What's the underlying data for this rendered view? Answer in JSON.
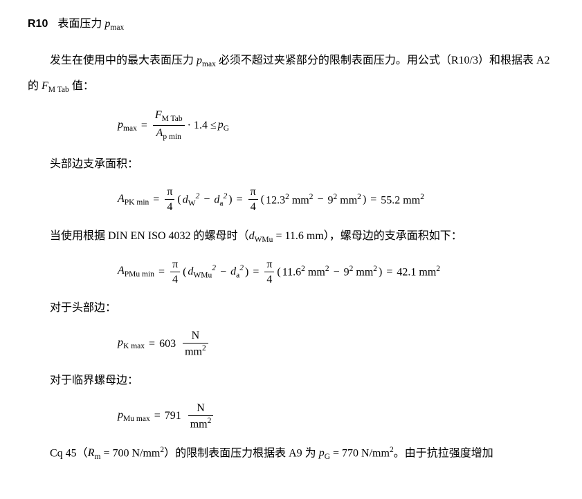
{
  "heading": {
    "tag": "R10",
    "title_pre": "表面压力 ",
    "title_sym": "p",
    "title_sub": "max"
  },
  "p1": {
    "t1": "发生在使用中的最大表面压力 ",
    "sym1": "p",
    "sub1": "max",
    "t2": " 必须不超过夹紧部分的限制表面压力。用公式（R10/3）和根据表 A2 的 ",
    "sym2": "F",
    "sub2": "M Tab",
    "t3": " 值："
  },
  "eq1": {
    "lhs_sym": "p",
    "lhs_sub": "max",
    "num_sym": "F",
    "num_sub": "M Tab",
    "den_sym": "A",
    "den_sub": "p min",
    "factor": " · 1.4 ≤ ",
    "rhs_sym": "p",
    "rhs_sub": "G"
  },
  "sh1": "头部边支承面积：",
  "eq2": {
    "lhs_sym": "A",
    "lhs_sub": "PK min",
    "pi_over_4_num": "π",
    "pi_over_4_den": "4",
    "d1_sym": "d",
    "d1_sub": "W",
    "d1_sup": "2",
    "d2_sym": "d",
    "d2_sub": "a",
    "d2_sup": "2",
    "val1": "12.3",
    "sq": "2",
    "unit": "mm",
    "val2": "9",
    "result": "55.2 mm",
    "result_sup": "2"
  },
  "p2": {
    "t1": "当使用根据 DIN EN ISO 4032 的螺母时（",
    "sym": "d",
    "sub": "WMu",
    "t2": " = 11.6 mm），螺母边的支承面积如下："
  },
  "eq3": {
    "lhs_sym": "A",
    "lhs_sub": "PMu min",
    "d1_sub": "WMu",
    "val1": "11.6",
    "result": "42.1 mm"
  },
  "sh2": "对于头部边：",
  "eq4": {
    "lhs_sym": "p",
    "lhs_sub": "K max",
    "val": "603",
    "unit_num": "N",
    "unit_den": "mm",
    "unit_den_sup": "2"
  },
  "sh3": "对于临界螺母边：",
  "eq5": {
    "lhs_sym": "p",
    "lhs_sub": "Mu max",
    "val": "791"
  },
  "p3": {
    "t1": "Cq 45（",
    "sym1": "R",
    "sub1": "m",
    "t2": " = 700 N/mm",
    "sup2": "2",
    "t3": "）的限制表面压力根据表 A9 为 ",
    "sym2": "p",
    "sub2": "G",
    "t4": " = 770 N/mm",
    "sup4": "2",
    "t5": "。由于抗拉强度增加"
  }
}
